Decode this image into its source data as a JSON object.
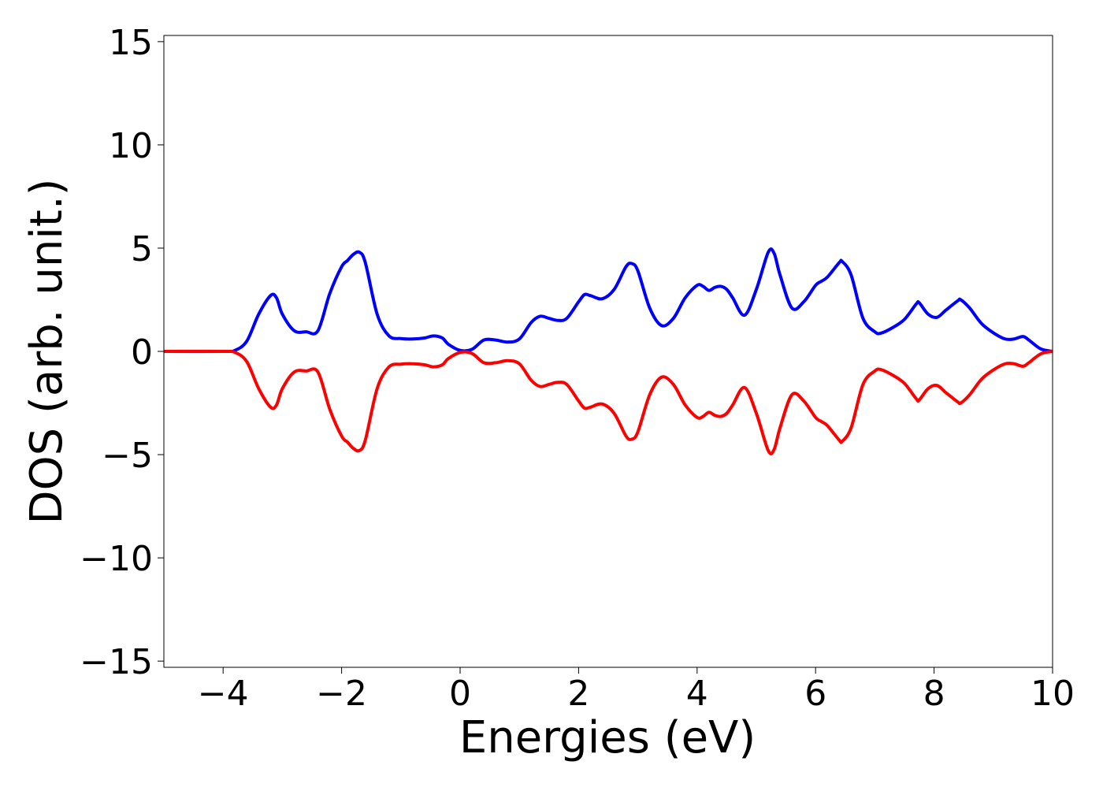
{
  "chart_data": {
    "type": "line",
    "title": "",
    "xlabel": "Energies (eV)",
    "ylabel": "DOS (arb. unit.)",
    "xlim": [
      -5,
      10
    ],
    "ylim": [
      -15.3,
      15.3
    ],
    "xticks": [
      -4,
      -2,
      0,
      2,
      4,
      6,
      8,
      10
    ],
    "xtick_labels": [
      "−4",
      "−2",
      "0",
      "2",
      "4",
      "6",
      "8",
      "10"
    ],
    "yticks": [
      15,
      10,
      5,
      0,
      -5,
      -10,
      -15
    ],
    "ytick_labels": [
      "15",
      "10",
      "5",
      "0",
      "−5",
      "−10",
      "−15"
    ],
    "grid": false,
    "legend": "none",
    "series": [
      {
        "color": "#0000ff",
        "x": [
          -5,
          -4,
          -3.8,
          -3.6,
          -3.4,
          -3.2,
          -3.1,
          -3.0,
          -2.8,
          -2.6,
          -2.4,
          -2.2,
          -2.0,
          -1.9,
          -1.8,
          -1.7,
          -1.6,
          -1.4,
          -1.2,
          -1.0,
          -0.8,
          -0.6,
          -0.45,
          -0.3,
          -0.2,
          0.0,
          0.2,
          0.4,
          0.6,
          0.8,
          1.0,
          1.2,
          1.35,
          1.5,
          1.65,
          1.8,
          2.0,
          2.1,
          2.2,
          2.4,
          2.6,
          2.8,
          2.9,
          3.0,
          3.2,
          3.4,
          3.6,
          3.8,
          4.0,
          4.1,
          4.2,
          4.3,
          4.4,
          4.5,
          4.6,
          4.8,
          5.0,
          5.2,
          5.3,
          5.4,
          5.6,
          5.8,
          6.0,
          6.1,
          6.2,
          6.4,
          6.45,
          6.6,
          6.8,
          7.0,
          7.1,
          7.3,
          7.5,
          7.7,
          7.75,
          7.9,
          8.05,
          8.2,
          8.4,
          8.45,
          8.6,
          8.8,
          9.0,
          9.2,
          9.35,
          9.5,
          9.6,
          9.8,
          10.0
        ],
        "y": [
          0,
          0,
          0.05,
          0.5,
          1.8,
          2.7,
          2.6,
          1.8,
          1.0,
          0.95,
          1.0,
          2.8,
          4.1,
          4.4,
          4.7,
          4.8,
          4.3,
          1.8,
          0.75,
          0.62,
          0.6,
          0.65,
          0.75,
          0.65,
          0.35,
          0.05,
          0.1,
          0.55,
          0.55,
          0.45,
          0.6,
          1.4,
          1.7,
          1.6,
          1.5,
          1.6,
          2.4,
          2.75,
          2.7,
          2.55,
          3.0,
          4.1,
          4.25,
          3.9,
          2.1,
          1.25,
          1.6,
          2.6,
          3.2,
          3.15,
          2.95,
          3.1,
          3.15,
          3.0,
          2.6,
          1.75,
          3.0,
          4.8,
          4.75,
          3.7,
          2.1,
          2.4,
          3.2,
          3.4,
          3.6,
          4.3,
          4.35,
          3.7,
          1.6,
          0.95,
          0.88,
          1.15,
          1.55,
          2.3,
          2.35,
          1.8,
          1.65,
          2.0,
          2.45,
          2.5,
          2.1,
          1.35,
          0.9,
          0.6,
          0.6,
          0.72,
          0.55,
          0.12,
          0.0
        ]
      },
      {
        "color": "#ff0000",
        "x": [
          -5,
          -4,
          -3.8,
          -3.6,
          -3.4,
          -3.2,
          -3.1,
          -3.0,
          -2.8,
          -2.6,
          -2.4,
          -2.2,
          -2.0,
          -1.9,
          -1.8,
          -1.7,
          -1.6,
          -1.4,
          -1.2,
          -1.0,
          -0.8,
          -0.6,
          -0.45,
          -0.3,
          -0.2,
          0.0,
          0.2,
          0.4,
          0.6,
          0.8,
          1.0,
          1.2,
          1.35,
          1.5,
          1.65,
          1.8,
          2.0,
          2.1,
          2.2,
          2.4,
          2.6,
          2.8,
          2.9,
          3.0,
          3.2,
          3.4,
          3.6,
          3.8,
          4.0,
          4.1,
          4.2,
          4.3,
          4.4,
          4.5,
          4.6,
          4.8,
          5.0,
          5.2,
          5.3,
          5.4,
          5.6,
          5.8,
          6.0,
          6.1,
          6.2,
          6.4,
          6.45,
          6.6,
          6.8,
          7.0,
          7.1,
          7.3,
          7.5,
          7.7,
          7.75,
          7.9,
          8.05,
          8.2,
          8.4,
          8.45,
          8.6,
          8.8,
          9.0,
          9.2,
          9.35,
          9.5,
          9.6,
          9.8,
          10.0
        ],
        "y": [
          0,
          0,
          -0.05,
          -0.5,
          -1.8,
          -2.7,
          -2.6,
          -1.8,
          -1.0,
          -0.95,
          -1.0,
          -2.8,
          -4.1,
          -4.4,
          -4.7,
          -4.8,
          -4.3,
          -1.8,
          -0.75,
          -0.62,
          -0.6,
          -0.65,
          -0.75,
          -0.65,
          -0.35,
          -0.05,
          -0.1,
          -0.55,
          -0.55,
          -0.45,
          -0.6,
          -1.4,
          -1.7,
          -1.6,
          -1.5,
          -1.6,
          -2.4,
          -2.75,
          -2.7,
          -2.55,
          -3.0,
          -4.1,
          -4.25,
          -3.9,
          -2.1,
          -1.25,
          -1.6,
          -2.6,
          -3.2,
          -3.15,
          -2.95,
          -3.1,
          -3.15,
          -3.0,
          -2.6,
          -1.75,
          -3.0,
          -4.8,
          -4.75,
          -3.7,
          -2.1,
          -2.4,
          -3.2,
          -3.4,
          -3.6,
          -4.3,
          -4.35,
          -3.7,
          -1.6,
          -0.95,
          -0.88,
          -1.15,
          -1.55,
          -2.3,
          -2.35,
          -1.8,
          -1.65,
          -2.0,
          -2.45,
          -2.5,
          -2.1,
          -1.35,
          -0.9,
          -0.6,
          -0.6,
          -0.72,
          -0.55,
          -0.12,
          0.0
        ]
      }
    ]
  }
}
